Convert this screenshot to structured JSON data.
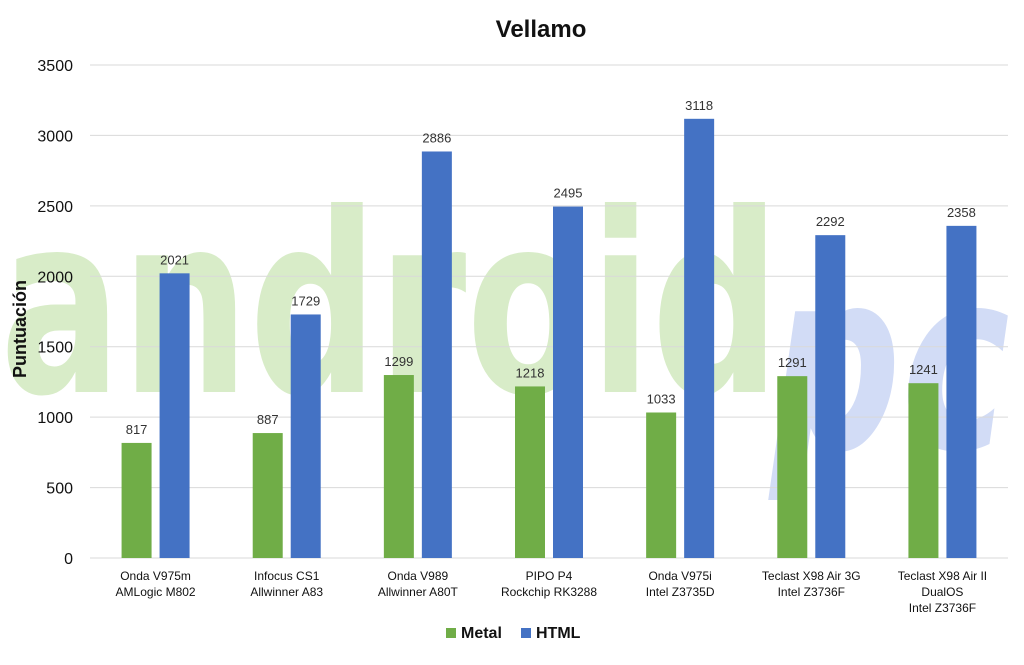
{
  "watermark": {
    "text_main": "android",
    "text_accent": "pc",
    "main_color": "#d8ecc8",
    "accent_color": "#d2dcf6"
  },
  "chart_data": {
    "type": "bar",
    "title": "Vellamo",
    "xlabel": "",
    "ylabel": "Puntuación",
    "ylim": [
      0,
      3500
    ],
    "yticks": [
      0,
      500,
      1000,
      1500,
      2000,
      2500,
      3000,
      3500
    ],
    "grid": true,
    "legend_position": "bottom",
    "categories": [
      [
        "Onda V975m",
        "AMLogic M802"
      ],
      [
        "Infocus CS1",
        "Allwinner A83"
      ],
      [
        "Onda V989",
        "Allwinner A80T"
      ],
      [
        "PIPO P4",
        "Rockchip RK3288"
      ],
      [
        "Onda V975i",
        "Intel Z3735D"
      ],
      [
        "Teclast X98 Air 3G",
        "Intel Z3736F"
      ],
      [
        "Teclast X98 Air II",
        "DualOS",
        "Intel Z3736F"
      ]
    ],
    "series": [
      {
        "name": "Metal",
        "color": "#70ad47",
        "values": [
          817,
          887,
          1299,
          1218,
          1033,
          1291,
          1241
        ]
      },
      {
        "name": "HTML",
        "color": "#4472c4",
        "values": [
          2021,
          1729,
          2886,
          2495,
          3118,
          2292,
          2358
        ]
      }
    ],
    "data_labels": true
  }
}
